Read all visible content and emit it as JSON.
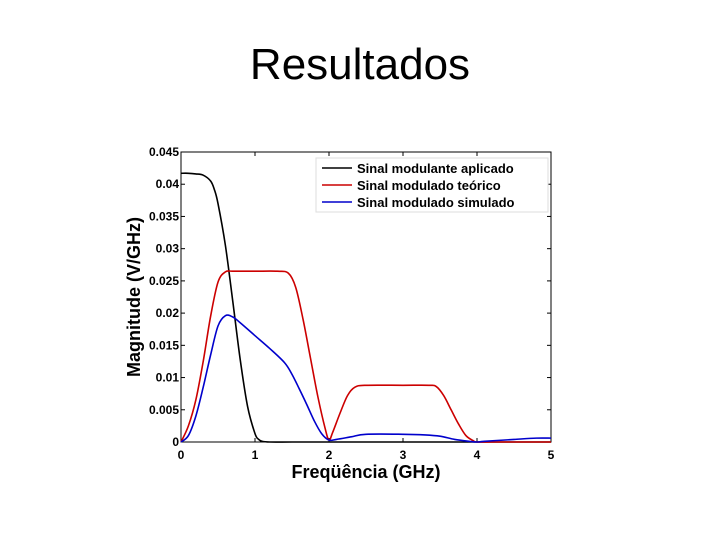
{
  "slide": {
    "title": "Resultados"
  },
  "chart_data": {
    "type": "line",
    "xlabel": "Freqüência (GHz)",
    "ylabel": "Magnitude (V/GHz)",
    "xlim": [
      0,
      5
    ],
    "ylim": [
      0,
      0.045
    ],
    "xticks": [
      "0",
      "1",
      "2",
      "3",
      "4",
      "5"
    ],
    "yticks": [
      "0",
      "0.005",
      "0.01",
      "0.015",
      "0.02",
      "0.025",
      "0.03",
      "0.035",
      "0.04",
      "0.045"
    ],
    "grid": false,
    "legend_position": "top-right",
    "series": [
      {
        "name": "Sinal modulante aplicado",
        "color": "#000000",
        "x": [
          0,
          0.1,
          0.2,
          0.3,
          0.4,
          0.45,
          0.5,
          0.6,
          0.7,
          0.8,
          0.9,
          1.0,
          1.05,
          1.1,
          1.2,
          1.5,
          2.0,
          2.5,
          3.0,
          3.5,
          4.0,
          4.5,
          5.0
        ],
        "y": [
          0.0417,
          0.0417,
          0.0416,
          0.0414,
          0.0405,
          0.0392,
          0.037,
          0.0305,
          0.0218,
          0.0128,
          0.0055,
          0.0013,
          0.0004,
          0.0001,
          0.0,
          0.0,
          0.0,
          0.0,
          0.0,
          0.0,
          0.0,
          0.0,
          0.0
        ]
      },
      {
        "name": "Sinal modulado teórico",
        "color": "#cc0000",
        "x": [
          0,
          0.1,
          0.2,
          0.3,
          0.4,
          0.5,
          0.6,
          0.7,
          1.0,
          1.3,
          1.45,
          1.55,
          1.65,
          1.75,
          1.85,
          1.95,
          2.0,
          2.05,
          2.15,
          2.25,
          2.35,
          2.5,
          3.0,
          3.35,
          3.45,
          3.55,
          3.65,
          3.75,
          3.85,
          3.95,
          4.0,
          4.2,
          4.5,
          5.0
        ],
        "y": [
          0.0,
          0.0025,
          0.0065,
          0.0125,
          0.0195,
          0.0248,
          0.0264,
          0.0265,
          0.0265,
          0.0265,
          0.0262,
          0.024,
          0.019,
          0.013,
          0.007,
          0.002,
          0.0003,
          0.0015,
          0.0045,
          0.0072,
          0.0085,
          0.0088,
          0.0088,
          0.0088,
          0.0086,
          0.0072,
          0.005,
          0.0028,
          0.001,
          0.0002,
          0.0,
          0.0,
          0.0,
          0.0
        ]
      },
      {
        "name": "Sinal modulado simulado",
        "color": "#0000cc",
        "x": [
          0,
          0.1,
          0.2,
          0.3,
          0.4,
          0.5,
          0.6,
          0.7,
          0.8,
          1.0,
          1.2,
          1.4,
          1.5,
          1.6,
          1.7,
          1.8,
          1.9,
          2.0,
          2.1,
          2.3,
          2.5,
          3.0,
          3.3,
          3.5,
          3.7,
          3.9,
          4.0,
          4.1,
          4.5,
          4.8,
          5.0
        ],
        "y": [
          0.0,
          0.001,
          0.004,
          0.0085,
          0.0135,
          0.018,
          0.0196,
          0.0194,
          0.0185,
          0.0165,
          0.0145,
          0.0123,
          0.0105,
          0.0082,
          0.0058,
          0.0033,
          0.0013,
          0.0003,
          0.0004,
          0.0008,
          0.0012,
          0.0012,
          0.0011,
          0.0009,
          0.0004,
          0.0001,
          0.0,
          0.0001,
          0.0004,
          0.0006,
          0.0006
        ]
      }
    ]
  }
}
